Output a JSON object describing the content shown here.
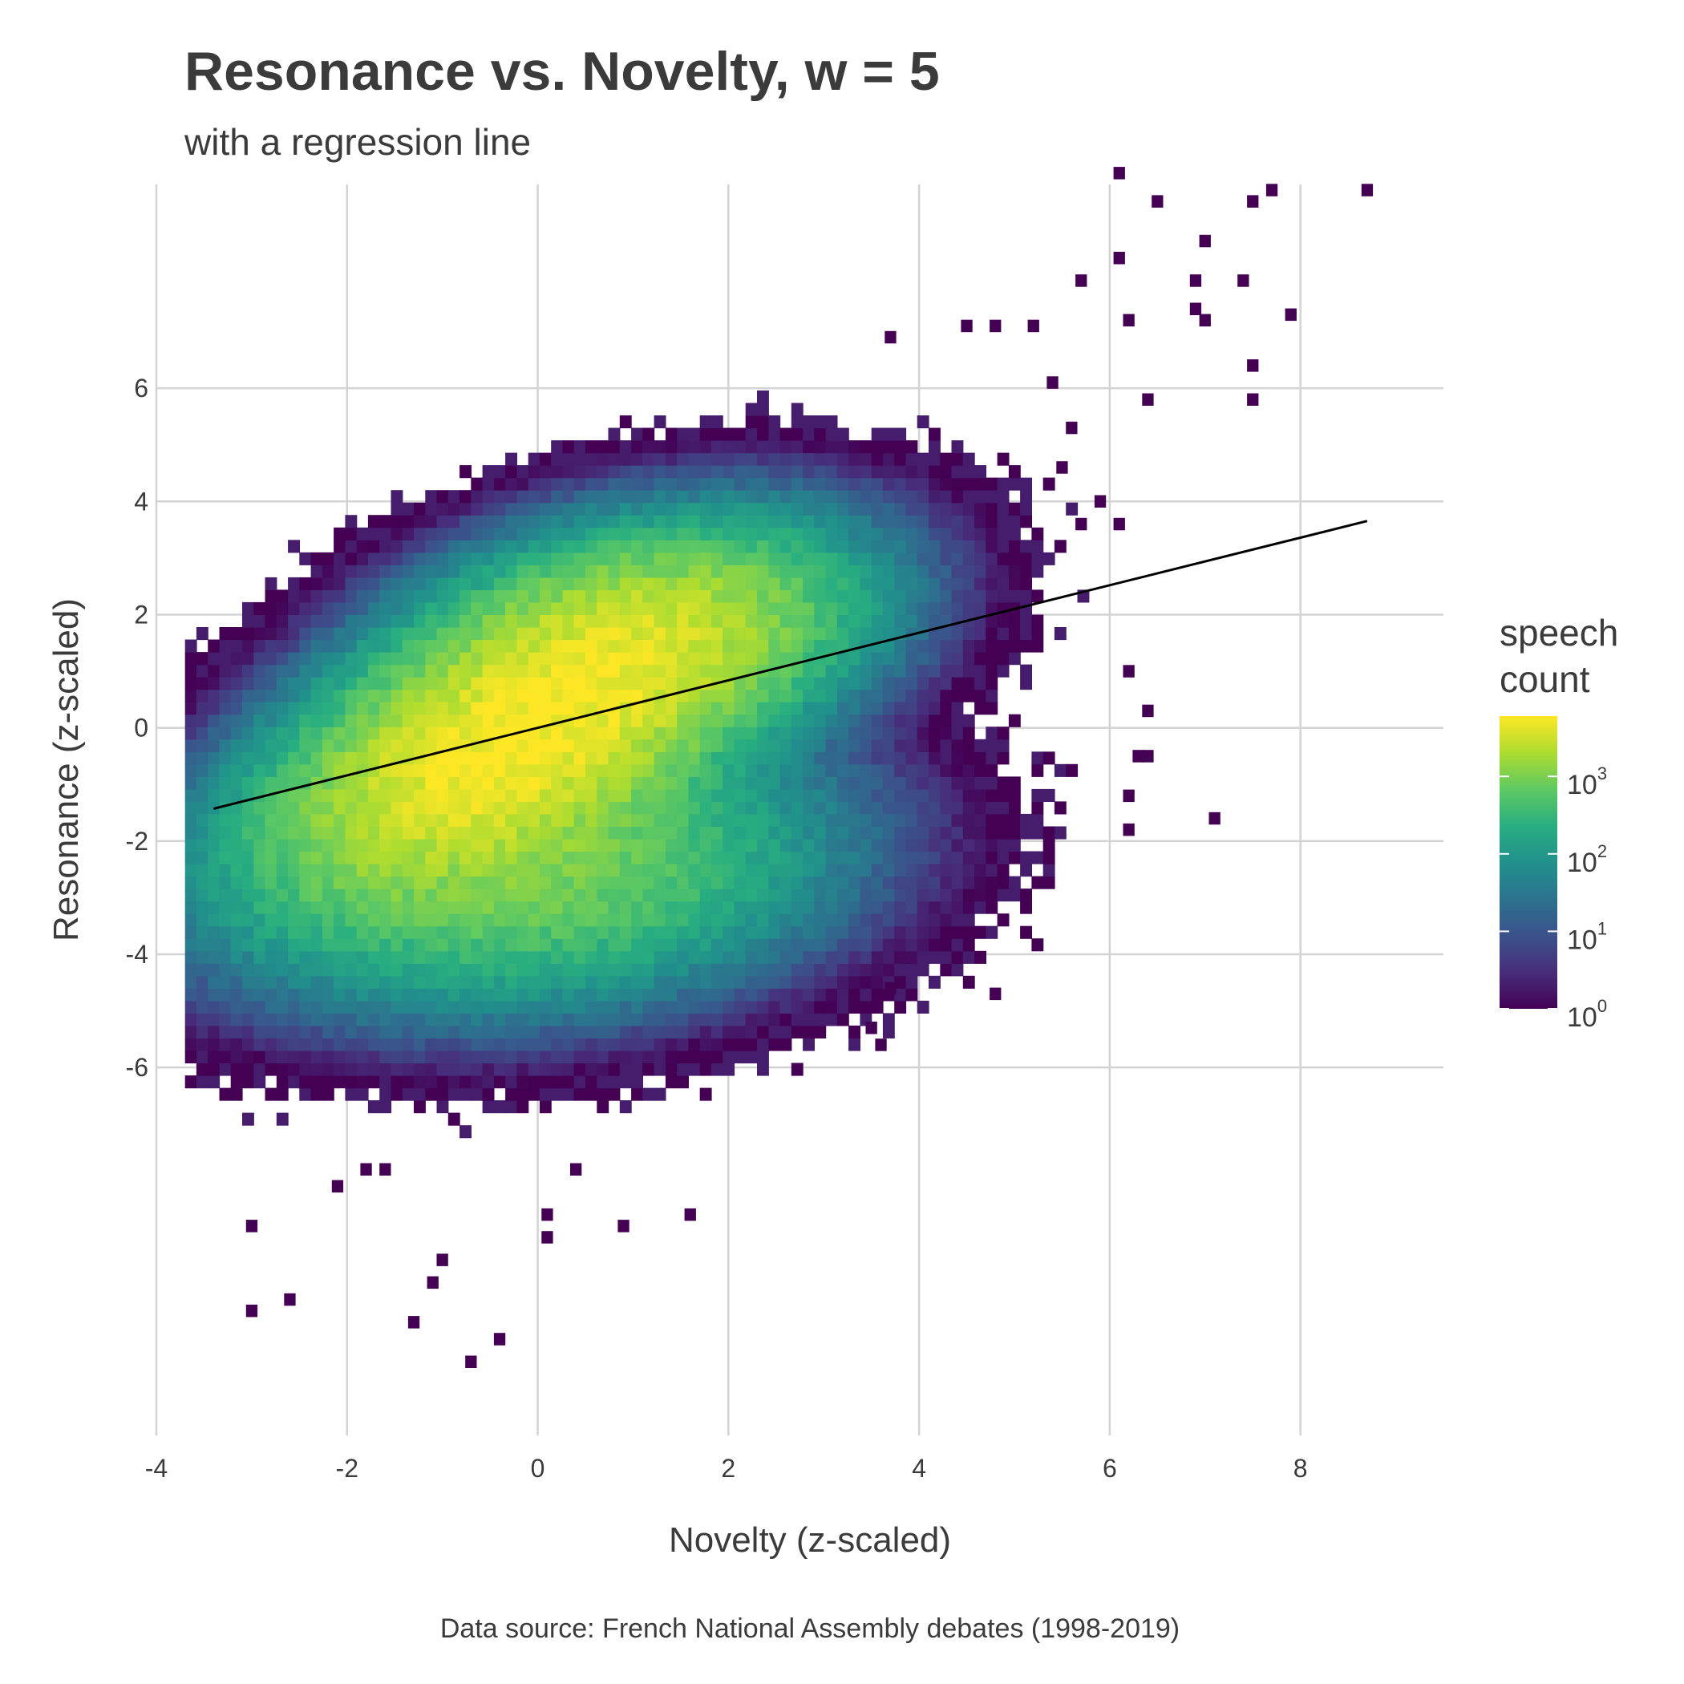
{
  "chart_data": {
    "type": "heatmap",
    "title": "Resonance vs. Novelty, w = 5",
    "subtitle": "with a regression line",
    "xlabel": "Novelty (z-scaled)",
    "ylabel": "Resonance (z-scaled)",
    "caption": "Data source: French National Assembly debates (1998-2019)",
    "xlim": [
      -4,
      9.5
    ],
    "ylim": [
      -12.5,
      9.6
    ],
    "x_ticks": [
      -4,
      -2,
      0,
      2,
      4,
      6,
      8
    ],
    "y_ticks": [
      -6,
      -4,
      -2,
      0,
      2,
      4,
      6
    ],
    "grid": true,
    "bin_width": 0.12,
    "bin_height": 0.22,
    "density": {
      "components": [
        {
          "cx": -0.3,
          "cy": -0.3,
          "sx": 1.1,
          "sy": 1.2,
          "rho": 0.55,
          "weight": 1.0
        },
        {
          "cx": 1.0,
          "cy": 1.5,
          "sx": 1.0,
          "sy": 0.9,
          "rho": 0.3,
          "weight": 0.45
        },
        {
          "cx": 0.0,
          "cy": -2.6,
          "sx": 1.3,
          "sy": 1.0,
          "rho": 0.2,
          "weight": 0.15
        }
      ],
      "peak_count": 6000,
      "noise": 0.75
    },
    "outliers": [
      [
        6.1,
        9.8
      ],
      [
        6.5,
        9.3
      ],
      [
        7.5,
        9.3
      ],
      [
        7.7,
        9.5
      ],
      [
        8.7,
        9.5
      ],
      [
        6.1,
        8.3
      ],
      [
        7.0,
        8.6
      ],
      [
        6.9,
        7.9
      ],
      [
        7.4,
        7.9
      ],
      [
        5.7,
        7.9
      ],
      [
        7.9,
        7.3
      ],
      [
        6.2,
        7.2
      ],
      [
        6.9,
        7.4
      ],
      [
        7.0,
        7.2
      ],
      [
        7.5,
        6.4
      ],
      [
        7.5,
        5.8
      ],
      [
        6.4,
        5.8
      ],
      [
        6.1,
        3.6
      ],
      [
        7.1,
        -1.6
      ],
      [
        6.2,
        -1.8
      ],
      [
        6.2,
        -1.2
      ],
      [
        6.3,
        -0.5
      ],
      [
        6.4,
        -0.5
      ],
      [
        6.2,
        1.0
      ],
      [
        6.4,
        0.3
      ],
      [
        -3.0,
        -8.8
      ],
      [
        -3.0,
        -10.3
      ],
      [
        -2.6,
        -10.1
      ],
      [
        -1.3,
        -10.5
      ],
      [
        -1.0,
        -9.4
      ],
      [
        -1.1,
        -9.8
      ],
      [
        -0.7,
        -11.2
      ],
      [
        -0.4,
        -10.8
      ],
      [
        0.9,
        -8.8
      ],
      [
        1.6,
        -8.6
      ],
      [
        0.1,
        -8.6
      ],
      [
        0.1,
        -9.0
      ],
      [
        -2.1,
        -8.1
      ],
      [
        -1.8,
        -7.8
      ],
      [
        -1.6,
        -7.8
      ],
      [
        0.4,
        -7.8
      ],
      [
        4.8,
        -4.7
      ],
      [
        3.6,
        -5.6
      ],
      [
        3.7,
        -4.6
      ],
      [
        3.5,
        -5.3
      ],
      [
        5.4,
        6.1
      ],
      [
        5.6,
        5.3
      ],
      [
        5.5,
        4.6
      ],
      [
        5.9,
        4.0
      ],
      [
        5.7,
        3.6
      ],
      [
        4.5,
        7.1
      ],
      [
        4.8,
        7.1
      ],
      [
        5.2,
        7.1
      ],
      [
        3.7,
        6.9
      ]
    ],
    "regression": {
      "x": [
        -3.4,
        8.7
      ],
      "slope": 0.42,
      "intercept": 0.0
    },
    "legend": {
      "title_lines": [
        "speech",
        "count"
      ],
      "placement": "right",
      "scale": "log",
      "min": 1,
      "max": 6000,
      "labels": [
        {
          "value": 1,
          "base": "10",
          "exp": "0"
        },
        {
          "value": 10,
          "base": "10",
          "exp": "1"
        },
        {
          "value": 100,
          "base": "10",
          "exp": "2"
        },
        {
          "value": 1000,
          "base": "10",
          "exp": "3"
        }
      ],
      "colors": [
        "#440154",
        "#472d7b",
        "#3b528b",
        "#2c728e",
        "#21918c",
        "#28ae80",
        "#5ec962",
        "#addc30",
        "#fde725"
      ]
    }
  }
}
